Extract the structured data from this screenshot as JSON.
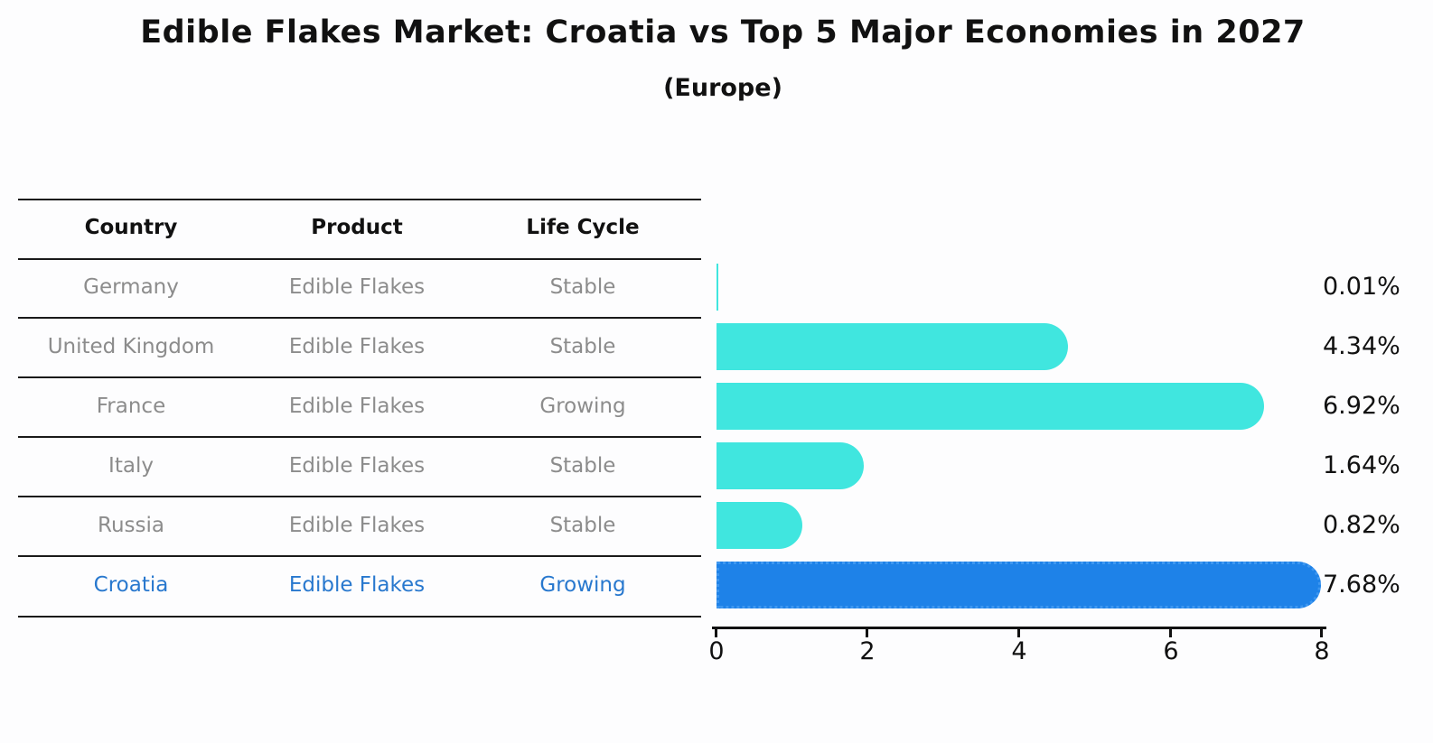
{
  "title": "Edible Flakes Market: Croatia vs Top 5 Major Economies in 2027",
  "subtitle": "(Europe)",
  "table": {
    "headers": [
      "Country",
      "Product",
      "Life Cycle"
    ],
    "rows": [
      {
        "country": "Germany",
        "product": "Edible Flakes",
        "life_cycle": "Stable",
        "highlight": false
      },
      {
        "country": "United Kingdom",
        "product": "Edible Flakes",
        "life_cycle": "Stable",
        "highlight": false
      },
      {
        "country": "France",
        "product": "Edible Flakes",
        "life_cycle": "Growing",
        "highlight": false
      },
      {
        "country": "Italy",
        "product": "Edible Flakes",
        "life_cycle": "Stable",
        "highlight": false
      },
      {
        "country": "Russia",
        "product": "Edible Flakes",
        "life_cycle": "Stable",
        "highlight": false
      },
      {
        "country": "Croatia",
        "product": "Edible Flakes",
        "life_cycle": "Growing",
        "highlight": true
      }
    ]
  },
  "chart_data": {
    "type": "bar",
    "orientation": "horizontal",
    "title": "Edible Flakes Market: Croatia vs Top 5 Major Economies in 2027",
    "subtitle": "(Europe)",
    "categories": [
      "Germany",
      "United Kingdom",
      "France",
      "Italy",
      "Russia",
      "Croatia"
    ],
    "values": [
      0.01,
      4.34,
      6.92,
      1.64,
      0.82,
      7.68
    ],
    "value_labels": [
      "0.01%",
      "4.34%",
      "6.92%",
      "1.64%",
      "0.82%",
      "7.68%"
    ],
    "xlabel": "",
    "ylabel": "",
    "xlim": [
      0,
      8
    ],
    "xticks": [
      "0",
      "2",
      "4",
      "6",
      "8"
    ],
    "grid": false,
    "legend": false,
    "bar_color": "#40E6DF",
    "highlight_color": "#1E82E8",
    "highlight_index": 5
  },
  "colors": {
    "bar": "#40E6DF",
    "highlight_bar": "#1E82E8",
    "highlight_text": "#2878CE",
    "cell_text": "#8C8C8C",
    "header_text": "#111111",
    "axis": "#111111"
  }
}
